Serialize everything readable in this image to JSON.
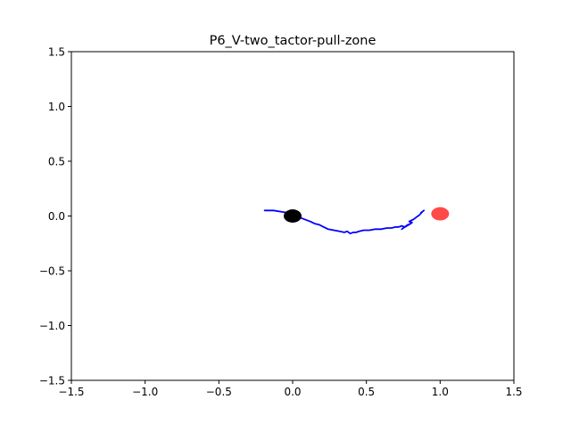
{
  "chart_data": {
    "type": "scatter",
    "title": "P6_V-two_tactor-pull-zone",
    "xlabel": "",
    "ylabel": "",
    "xlim": [
      -1.5,
      1.5
    ],
    "ylim": [
      -1.5,
      1.5
    ],
    "x_tick_labels": [
      "−1.5",
      "−1.0",
      "−0.5",
      "0.0",
      "0.5",
      "1.0",
      "1.5"
    ],
    "y_tick_labels": [
      "−1.5",
      "−1.0",
      "−0.5",
      "0.0",
      "0.5",
      "1.0",
      "1.5"
    ],
    "x_ticks": [
      -1.5,
      -1.0,
      -0.5,
      0.0,
      0.5,
      1.0,
      1.5
    ],
    "y_ticks": [
      -1.5,
      -1.0,
      -0.5,
      0.0,
      0.5,
      1.0,
      1.5
    ],
    "grid": false,
    "legend": "none",
    "colors": {
      "trajectory": "#0000ff",
      "start_marker": "#000000",
      "target_marker": "#ff4040"
    },
    "series": [
      {
        "kind": "line",
        "x": [
          -0.19,
          -0.13,
          -0.08,
          -0.04,
          0.0,
          0.04,
          0.08,
          0.12,
          0.15,
          0.18,
          0.21,
          0.24,
          0.28,
          0.32,
          0.35,
          0.37,
          0.39,
          0.41,
          0.43,
          0.45,
          0.48,
          0.52,
          0.56,
          0.6,
          0.64,
          0.67,
          0.7,
          0.72,
          0.74,
          0.76,
          0.74,
          0.78,
          0.75,
          0.8,
          0.77,
          0.81,
          0.79,
          0.82,
          0.84,
          0.86,
          0.88,
          0.89,
          0.87
        ],
        "y": [
          0.05,
          0.05,
          0.04,
          0.03,
          0.01,
          -0.01,
          -0.03,
          -0.05,
          -0.07,
          -0.08,
          -0.1,
          -0.12,
          -0.13,
          -0.14,
          -0.15,
          -0.14,
          -0.16,
          -0.15,
          -0.15,
          -0.14,
          -0.13,
          -0.13,
          -0.12,
          -0.12,
          -0.11,
          -0.11,
          -0.1,
          -0.1,
          -0.09,
          -0.1,
          -0.12,
          -0.08,
          -0.11,
          -0.07,
          -0.09,
          -0.06,
          -0.05,
          -0.03,
          -0.01,
          0.01,
          0.04,
          0.05,
          0.03
        ]
      },
      {
        "kind": "point",
        "x": [
          0.0
        ],
        "y": [
          0.0
        ]
      },
      {
        "kind": "point",
        "x": [
          1.0
        ],
        "y": [
          0.02
        ]
      }
    ]
  }
}
